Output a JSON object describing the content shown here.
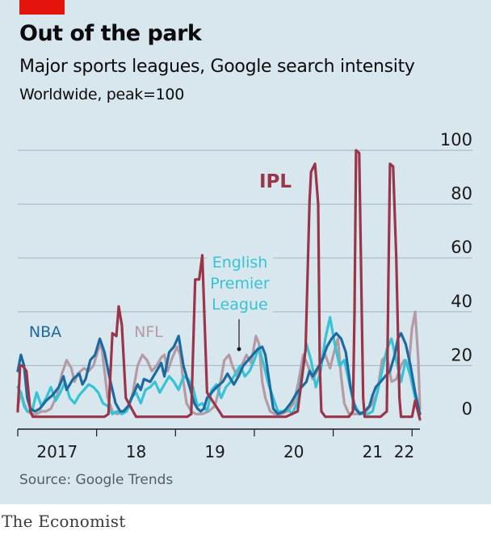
{
  "header": {
    "title": "Out of the park",
    "subtitle": "Major sports leagues, Google search intensity",
    "note": "Worldwide, peak=100"
  },
  "footer": {
    "source": "Source: Google Trends",
    "brand": "The Economist"
  },
  "colors": {
    "background": "#d8e6ee",
    "grid": "#a9bcc8",
    "IPL": "#9a3448",
    "NBA": "#1d6aa0",
    "NFL": "#b49aa3",
    "EPL": "#35c3d6"
  },
  "chart_data": {
    "type": "line",
    "title": "Out of the park",
    "subtitle": "Major sports leagues, Google search intensity",
    "note": "Worldwide, peak=100",
    "ylim": [
      0,
      100
    ],
    "yticks": [
      0,
      20,
      40,
      60,
      80,
      100
    ],
    "x_ticks": [
      "2017",
      "18",
      "19",
      "20",
      "21",
      "22"
    ],
    "x_range": [
      2017,
      2022.1
    ],
    "grid": true,
    "y_axis_side": "right",
    "series": [
      {
        "name": "IPL",
        "label": "IPL",
        "x": [
          2017.0,
          2017.03,
          2017.06,
          2017.11,
          2017.16,
          2017.19,
          2017.22,
          2017.3,
          2017.5,
          2017.75,
          2017.9,
          2017.98,
          2018.0,
          2018.1,
          2018.15,
          2018.2,
          2018.25,
          2018.28,
          2018.32,
          2018.37,
          2018.5,
          2018.7,
          2018.9,
          2018.98,
          2019.0,
          2019.1,
          2019.15,
          2019.2,
          2019.25,
          2019.3,
          2019.34,
          2019.4,
          2019.6,
          2019.8,
          2019.95,
          2020.0,
          2020.2,
          2020.4,
          2020.55,
          2020.65,
          2020.7,
          2020.72,
          2020.77,
          2020.81,
          2020.83,
          2020.85,
          2020.9,
          2021.0,
          2021.1,
          2021.2,
          2021.25,
          2021.27,
          2021.29,
          2021.33,
          2021.36,
          2021.38,
          2021.4,
          2021.5,
          2021.6,
          2021.68,
          2021.7,
          2021.72,
          2021.76,
          2021.8,
          2021.84,
          2021.86,
          2021.9,
          2022.0,
          2022.04,
          2022.1
        ],
        "values": [
          3,
          20,
          20,
          18,
          3,
          1,
          1,
          1,
          1,
          1,
          1,
          1,
          1,
          1,
          2,
          32,
          31,
          42,
          35,
          8,
          1,
          1,
          1,
          1,
          1,
          1,
          1,
          2,
          52,
          52,
          61,
          10,
          1,
          1,
          1,
          1,
          1,
          1,
          3,
          26,
          81,
          92,
          95,
          80,
          20,
          3,
          1,
          1,
          1,
          1,
          3,
          40,
          100,
          99,
          45,
          8,
          1,
          1,
          1,
          3,
          50,
          95,
          94,
          60,
          8,
          1,
          1,
          1,
          7,
          0
        ]
      },
      {
        "name": "NBA",
        "label": "NBA",
        "x": [
          2017.0,
          2017.04,
          2017.08,
          2017.12,
          2017.16,
          2017.22,
          2017.28,
          2017.36,
          2017.44,
          2017.52,
          2017.58,
          2017.62,
          2017.7,
          2017.78,
          2017.82,
          2017.86,
          2017.92,
          2017.98,
          2018.04,
          2018.1,
          2018.16,
          2018.24,
          2018.3,
          2018.34,
          2018.4,
          2018.46,
          2018.52,
          2018.56,
          2018.6,
          2018.68,
          2018.76,
          2018.82,
          2018.86,
          2018.92,
          2018.98,
          2019.04,
          2019.1,
          2019.16,
          2019.2,
          2019.24,
          2019.28,
          2019.32,
          2019.36,
          2019.4,
          2019.46,
          2019.52,
          2019.6,
          2019.66,
          2019.74,
          2019.8,
          2019.86,
          2019.92,
          2019.98,
          2020.04,
          2020.1,
          2020.14,
          2020.18,
          2020.24,
          2020.3,
          2020.38,
          2020.46,
          2020.54,
          2020.6,
          2020.66,
          2020.7,
          2020.74,
          2020.8,
          2020.86,
          2020.92,
          2020.98,
          2021.04,
          2021.1,
          2021.16,
          2021.22,
          2021.28,
          2021.34,
          2021.4,
          2021.46,
          2021.5,
          2021.54,
          2021.6,
          2021.66,
          2021.72,
          2021.78,
          2021.82,
          2021.86,
          2021.92,
          2021.98,
          2022.04,
          2022.1
        ],
        "values": [
          18,
          24,
          20,
          8,
          4,
          3,
          4,
          7,
          9,
          12,
          16,
          11,
          15,
          17,
          13,
          15,
          22,
          24,
          30,
          25,
          16,
          6,
          3,
          3,
          5,
          9,
          13,
          11,
          15,
          14,
          18,
          21,
          16,
          25,
          27,
          31,
          20,
          14,
          10,
          6,
          4,
          3,
          4,
          8,
          10,
          12,
          14,
          17,
          13,
          16,
          20,
          22,
          24,
          26,
          27,
          24,
          16,
          4,
          2,
          3,
          6,
          10,
          12,
          14,
          18,
          16,
          19,
          22,
          27,
          30,
          32,
          30,
          25,
          12,
          4,
          2,
          3,
          5,
          9,
          12,
          14,
          16,
          18,
          24,
          30,
          32,
          28,
          20,
          10,
          2
        ]
      },
      {
        "name": "NFL",
        "label": "NFL",
        "x": [
          2017.0,
          2017.04,
          2017.08,
          2017.12,
          2017.18,
          2017.24,
          2017.3,
          2017.36,
          2017.42,
          2017.5,
          2017.56,
          2017.62,
          2017.68,
          2017.72,
          2017.76,
          2017.84,
          2017.9,
          2017.96,
          2018.02,
          2018.06,
          2018.1,
          2018.14,
          2018.2,
          2018.26,
          2018.34,
          2018.4,
          2018.46,
          2018.52,
          2018.58,
          2018.64,
          2018.7,
          2018.76,
          2018.82,
          2018.86,
          2018.9,
          2018.96,
          2019.02,
          2019.06,
          2019.1,
          2019.14,
          2019.2,
          2019.26,
          2019.34,
          2019.42,
          2019.5,
          2019.56,
          2019.62,
          2019.68,
          2019.72,
          2019.78,
          2019.84,
          2019.9,
          2019.96,
          2020.02,
          2020.06,
          2020.1,
          2020.14,
          2020.2,
          2020.26,
          2020.34,
          2020.42,
          2020.5,
          2020.56,
          2020.62,
          2020.68,
          2020.74,
          2020.8,
          2020.86,
          2020.9,
          2020.96,
          2021.02,
          2021.06,
          2021.1,
          2021.14,
          2021.2,
          2021.26,
          2021.34,
          2021.42,
          2021.5,
          2021.56,
          2021.62,
          2021.68,
          2021.74,
          2021.8,
          2021.86,
          2021.9,
          2021.96,
          2022.0,
          2022.04,
          2022.08,
          2022.1
        ],
        "values": [
          5,
          10,
          6,
          3,
          2,
          2,
          3,
          3,
          4,
          9,
          17,
          22,
          19,
          14,
          17,
          19,
          18,
          20,
          26,
          28,
          18,
          8,
          3,
          2,
          3,
          4,
          10,
          20,
          24,
          22,
          18,
          20,
          23,
          24,
          18,
          23,
          27,
          24,
          14,
          6,
          3,
          2,
          2,
          3,
          5,
          12,
          22,
          24,
          20,
          16,
          20,
          24,
          21,
          31,
          28,
          14,
          8,
          3,
          2,
          2,
          3,
          6,
          14,
          24,
          20,
          15,
          18,
          22,
          24,
          19,
          26,
          30,
          16,
          6,
          2,
          2,
          2,
          3,
          6,
          10,
          22,
          24,
          14,
          15,
          20,
          22,
          20,
          34,
          40,
          22,
          4
        ]
      },
      {
        "name": "English Premier League",
        "label": "English Premier League",
        "x": [
          2017.0,
          2017.04,
          2017.08,
          2017.12,
          2017.18,
          2017.24,
          2017.3,
          2017.36,
          2017.42,
          2017.48,
          2017.54,
          2017.6,
          2017.66,
          2017.72,
          2017.78,
          2017.84,
          2017.9,
          2017.96,
          2018.02,
          2018.08,
          2018.14,
          2018.2,
          2018.26,
          2018.32,
          2018.38,
          2018.44,
          2018.5,
          2018.56,
          2018.62,
          2018.68,
          2018.74,
          2018.8,
          2018.86,
          2018.92,
          2018.98,
          2019.04,
          2019.1,
          2019.16,
          2019.22,
          2019.28,
          2019.34,
          2019.4,
          2019.46,
          2019.52,
          2019.58,
          2019.64,
          2019.7,
          2019.76,
          2019.82,
          2019.88,
          2019.94,
          2020.0,
          2020.06,
          2020.12,
          2020.18,
          2020.24,
          2020.3,
          2020.36,
          2020.42,
          2020.48,
          2020.54,
          2020.6,
          2020.66,
          2020.72,
          2020.78,
          2020.84,
          2020.9,
          2020.96,
          2021.02,
          2021.08,
          2021.14,
          2021.2,
          2021.26,
          2021.32,
          2021.38,
          2021.44,
          2021.5,
          2021.56,
          2021.62,
          2021.68,
          2021.74,
          2021.8,
          2021.86,
          2021.92,
          2021.98,
          2022.04,
          2022.1
        ],
        "values": [
          12,
          10,
          5,
          3,
          3,
          10,
          5,
          8,
          12,
          7,
          10,
          14,
          8,
          6,
          9,
          11,
          13,
          12,
          10,
          6,
          5,
          2,
          3,
          2,
          3,
          8,
          10,
          6,
          11,
          12,
          14,
          10,
          13,
          16,
          14,
          11,
          16,
          15,
          12,
          5,
          6,
          3,
          11,
          13,
          8,
          12,
          14,
          17,
          20,
          16,
          18,
          22,
          27,
          20,
          13,
          8,
          3,
          3,
          4,
          2,
          6,
          16,
          28,
          22,
          12,
          18,
          30,
          38,
          28,
          20,
          22,
          14,
          6,
          3,
          2,
          2,
          3,
          10,
          18,
          26,
          30,
          22,
          14,
          22,
          16,
          8,
          2
        ]
      }
    ]
  }
}
